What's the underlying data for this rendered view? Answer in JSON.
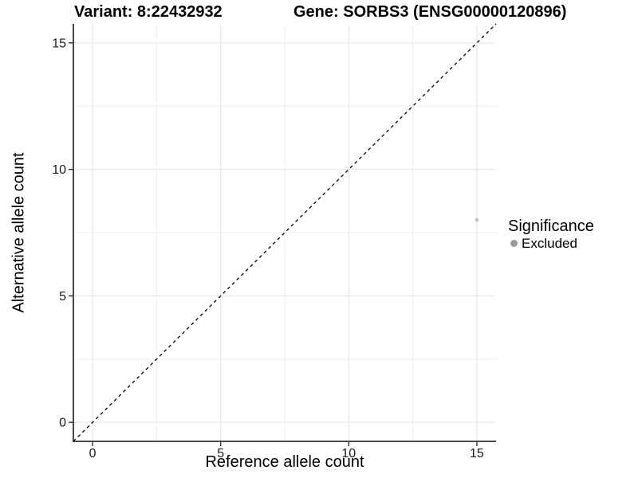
{
  "figure": {
    "title_variant": "Variant: 8:22432932",
    "title_gene": "Gene: SORBS3 (ENSG00000120896)"
  },
  "chart_data": {
    "type": "scatter",
    "title": "Variant: 8:22432932   Gene: SORBS3 (ENSG00000120896)",
    "xlabel": "Reference allele count",
    "ylabel": "Alternative allele count",
    "xlim": [
      -0.75,
      15.75
    ],
    "ylim": [
      -0.75,
      15.75
    ],
    "xticks": [
      0,
      5,
      10,
      15
    ],
    "yticks": [
      0,
      5,
      10,
      15
    ],
    "x_minor_ticks": [
      2.5,
      7.5,
      12.5
    ],
    "y_minor_ticks": [
      2.5,
      7.5,
      12.5
    ],
    "grid": "major and minor gridlines, light gray on white panel",
    "points": [
      {
        "x": 15,
        "y": 8,
        "significance": "Excluded"
      }
    ],
    "reference_line": {
      "type": "identity y=x",
      "style": "dashed",
      "color": "#000000"
    },
    "legend": {
      "title": "Significance",
      "position": "right",
      "entries": [
        {
          "label": "Excluded",
          "color": "#9c9c9c"
        }
      ]
    },
    "style": {
      "point_color": "#c6c6c6",
      "point_radius_px": 2.5,
      "grid_major_color": "#e4e4e4",
      "grid_minor_color": "#efefef",
      "axis_color": "#333333",
      "tick_text_color": "#1a1a1a"
    }
  }
}
